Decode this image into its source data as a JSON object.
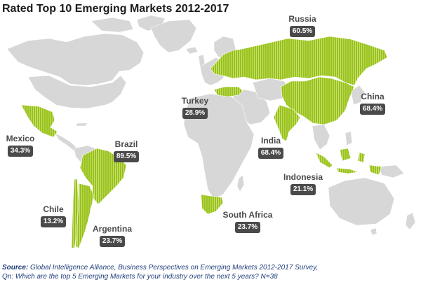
{
  "title": "Rated Top 10 Emerging Markets 2012-2017",
  "colors": {
    "highlight": "#99c21c",
    "land": "#d7d7d7",
    "badge": "#4a4a4a",
    "source_text": "#1f3d7a"
  },
  "markets": [
    {
      "name": "Russia",
      "value": "60.5%"
    },
    {
      "name": "China",
      "value": "68.4%"
    },
    {
      "name": "Turkey",
      "value": "28.9%"
    },
    {
      "name": "India",
      "value": "68.4%"
    },
    {
      "name": "Indonesia",
      "value": "21.1%"
    },
    {
      "name": "Mexico",
      "value": "34.3%"
    },
    {
      "name": "Brazil",
      "value": "89.5%"
    },
    {
      "name": "Chile",
      "value": "13.2%"
    },
    {
      "name": "Argentina",
      "value": "23.7%"
    },
    {
      "name": "South Africa",
      "value": "23.7%"
    }
  ],
  "source": {
    "label": "Source:",
    "line1": "Global Intelligence Alliance, Business Perspectives on Emerging Markets 2012-2017 Survey,",
    "line2": "Qn: Which are the top 5 Emerging Markets for your industry over the next 5 years? N=38"
  }
}
